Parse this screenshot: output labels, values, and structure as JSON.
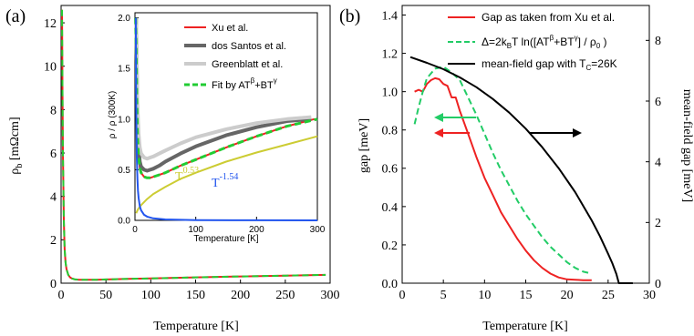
{
  "chart_data": [
    {
      "panel_label": "(a)",
      "type": "line",
      "xlabel": "Temperature [K]",
      "ylabel": "ρ_b [mΩcm]",
      "ylabel_main": "ρ",
      "ylabel_sub": "b",
      "ylabel_rest": " [mΩcm]",
      "xlim": [
        0,
        300
      ],
      "ylim": [
        0,
        12.8
      ],
      "xticks": [
        0,
        50,
        100,
        150,
        200,
        250,
        300
      ],
      "yticks": [
        0,
        2,
        4,
        6,
        8,
        10,
        12
      ],
      "series": [
        {
          "name": "Xu et al.",
          "color": "#ee2222",
          "x": [
            1,
            1.5,
            2,
            3,
            4,
            5,
            6,
            8,
            10,
            12,
            15,
            20,
            25,
            30,
            40,
            50,
            75,
            100,
            150,
            200,
            250,
            295
          ],
          "y": [
            12.6,
            9.0,
            6.0,
            2.9,
            1.55,
            0.95,
            0.65,
            0.38,
            0.27,
            0.22,
            0.18,
            0.16,
            0.155,
            0.155,
            0.16,
            0.17,
            0.2,
            0.22,
            0.27,
            0.31,
            0.35,
            0.38
          ]
        },
        {
          "name": "Fit by AT^β+BT^γ",
          "color": "#22cc33",
          "dashed": true,
          "x": [
            1,
            1.5,
            2,
            3,
            4,
            5,
            6,
            8,
            10,
            12,
            15,
            20,
            25,
            30,
            40,
            50,
            75,
            100,
            150,
            200,
            250,
            295
          ],
          "y": [
            12.6,
            9.0,
            6.0,
            2.9,
            1.55,
            0.95,
            0.65,
            0.38,
            0.27,
            0.22,
            0.18,
            0.16,
            0.155,
            0.155,
            0.16,
            0.17,
            0.2,
            0.22,
            0.27,
            0.31,
            0.35,
            0.38
          ]
        }
      ]
    },
    {
      "panel_label": "inset",
      "type": "line",
      "xlabel": "Temperature [K]",
      "ylabel": "ρ / ρ (300K)",
      "xlim": [
        0,
        300
      ],
      "ylim": [
        0,
        2.05
      ],
      "xticks": [
        0,
        100,
        200,
        300
      ],
      "yticks": [
        0.0,
        0.5,
        1.0,
        1.5,
        2.0
      ],
      "legend_position": "top-right",
      "annotations": [
        {
          "text": "T",
          "sup": "0.53",
          "color": "#cccc33"
        },
        {
          "text": "T",
          "sup": "-1.54",
          "color": "#2255ee"
        }
      ],
      "series": [
        {
          "name": "Xu et al.",
          "color": "#ee2222",
          "x": [
            1,
            2,
            3,
            4,
            6,
            8,
            10,
            15,
            20,
            25,
            30,
            40,
            50,
            75,
            100,
            150,
            200,
            250,
            295
          ],
          "y": [
            2.0,
            1.7,
            1.2,
            0.85,
            0.62,
            0.52,
            0.47,
            0.43,
            0.42,
            0.42,
            0.43,
            0.45,
            0.47,
            0.54,
            0.6,
            0.72,
            0.83,
            0.93,
            1.0
          ]
        },
        {
          "name": "dos Santos et al.",
          "color": "#666666",
          "x": [
            2,
            4,
            6,
            8,
            10,
            15,
            20,
            25,
            30,
            40,
            50,
            75,
            100,
            150,
            200,
            250,
            290
          ],
          "y": [
            2.0,
            1.05,
            0.72,
            0.58,
            0.53,
            0.5,
            0.49,
            0.5,
            0.51,
            0.54,
            0.58,
            0.66,
            0.73,
            0.84,
            0.92,
            0.98,
            1.0
          ]
        },
        {
          "name": "Greenblatt et al.",
          "color": "#cccccc",
          "x": [
            2,
            4,
            6,
            8,
            10,
            15,
            20,
            25,
            30,
            40,
            50,
            75,
            100,
            150,
            200,
            250,
            290
          ],
          "y": [
            2.0,
            1.15,
            0.85,
            0.72,
            0.66,
            0.62,
            0.61,
            0.62,
            0.63,
            0.66,
            0.69,
            0.76,
            0.82,
            0.9,
            0.96,
            1.0,
            1.02
          ]
        },
        {
          "name": "Fit by AT^β+BT^γ",
          "color": "#22cc33",
          "dashed": true,
          "x": [
            1,
            2,
            3,
            4,
            6,
            8,
            10,
            15,
            20,
            25,
            30,
            40,
            50,
            75,
            100,
            150,
            200,
            250,
            300
          ],
          "y": [
            2.0,
            1.7,
            1.2,
            0.85,
            0.62,
            0.52,
            0.47,
            0.43,
            0.42,
            0.42,
            0.43,
            0.45,
            0.47,
            0.54,
            0.6,
            0.72,
            0.83,
            0.93,
            1.0
          ]
        },
        {
          "name": "T^0.53",
          "color": "#cccc33",
          "x": [
            2,
            5,
            10,
            20,
            30,
            50,
            75,
            100,
            150,
            200,
            250,
            300
          ],
          "y": [
            0.07,
            0.11,
            0.15,
            0.21,
            0.26,
            0.33,
            0.41,
            0.47,
            0.58,
            0.67,
            0.75,
            0.83
          ]
        },
        {
          "name": "T^-1.54",
          "color": "#2255ee",
          "x": [
            1.4,
            2,
            3,
            4,
            5,
            6,
            8,
            10,
            15,
            20,
            30,
            50,
            100,
            200,
            300
          ],
          "y": [
            2.0,
            1.15,
            0.62,
            0.41,
            0.29,
            0.22,
            0.14,
            0.1,
            0.055,
            0.037,
            0.02,
            0.009,
            0.003,
            0.001,
            0.0
          ]
        }
      ]
    },
    {
      "panel_label": "(b)",
      "type": "line",
      "xlabel": "Temperature [K]",
      "ylabel": "gap [meV]",
      "y2label": "mean-field gap [meV]",
      "xlim": [
        0,
        30
      ],
      "ylim": [
        0,
        1.45
      ],
      "y2lim": [
        0,
        9.15
      ],
      "xticks": [
        0,
        5,
        10,
        15,
        20,
        25,
        30
      ],
      "yticks": [
        0.0,
        0.2,
        0.4,
        0.6,
        0.8,
        1.0,
        1.2,
        1.4
      ],
      "y2ticks": [
        0,
        2,
        4,
        6,
        8
      ],
      "legend_position": "top-right",
      "series": [
        {
          "name": "Gap as taken from Xu et al.",
          "color": "#ee2222",
          "axis": "left",
          "x": [
            1.5,
            2,
            2.5,
            3,
            3.5,
            4,
            4.5,
            5,
            5.5,
            6,
            6.5,
            7,
            8,
            9,
            10,
            11,
            12,
            13,
            14,
            15,
            16,
            17,
            18,
            19,
            20,
            21,
            22,
            23
          ],
          "y": [
            1.0,
            1.01,
            1.0,
            1.04,
            1.06,
            1.07,
            1.065,
            1.04,
            1.03,
            0.97,
            0.97,
            0.9,
            0.78,
            0.66,
            0.55,
            0.46,
            0.37,
            0.3,
            0.23,
            0.17,
            0.12,
            0.08,
            0.05,
            0.03,
            0.02,
            0.018,
            0.015,
            0.015
          ]
        },
        {
          "name": "Δ=2k_BT ln([AT^β+BT^γ] / ρ_0 )",
          "color": "#22cc66",
          "dashed": true,
          "axis": "left",
          "x": [
            1.5,
            2,
            2.5,
            3,
            4,
            5,
            6,
            7,
            8,
            9,
            10,
            11,
            12,
            13,
            14,
            15,
            16,
            17,
            18,
            19,
            20,
            21,
            22,
            23
          ],
          "y": [
            0.83,
            0.92,
            1.0,
            1.07,
            1.12,
            1.13,
            1.1,
            1.06,
            0.97,
            0.88,
            0.78,
            0.68,
            0.59,
            0.51,
            0.43,
            0.36,
            0.3,
            0.24,
            0.19,
            0.15,
            0.11,
            0.08,
            0.06,
            0.05
          ]
        },
        {
          "name": "mean-field gap with T_C=26K",
          "color": "#000000",
          "axis": "right",
          "x": [
            1,
            3,
            5,
            7,
            9,
            11,
            13,
            15,
            17,
            19,
            21,
            23,
            24,
            25,
            25.5,
            26,
            26.3,
            28
          ],
          "y": [
            7.45,
            7.26,
            7.05,
            6.78,
            6.46,
            6.07,
            5.62,
            5.09,
            4.48,
            3.79,
            3.0,
            2.07,
            1.55,
            0.97,
            0.66,
            0.3,
            0.0,
            0.0
          ]
        }
      ],
      "arrows": [
        {
          "direction": "left",
          "color": "#22cc66"
        },
        {
          "direction": "left",
          "color": "#ee2222"
        },
        {
          "direction": "right",
          "color": "#000000"
        }
      ]
    }
  ],
  "legend_a_inset": [
    {
      "label": "Xu et al.",
      "color": "#ee2222"
    },
    {
      "label": "dos Santos et al.",
      "color": "#666666"
    },
    {
      "label": "Greenblatt et al.",
      "color": "#cccccc"
    },
    {
      "label": "Fit by AT",
      "sup1": "β",
      "mid": "+BT",
      "sup2": "γ",
      "color": "#22cc33",
      "dashed": true
    }
  ],
  "legend_b": [
    {
      "label": "Gap as taken from Xu et al.",
      "color": "#ee2222"
    },
    {
      "label": "Δ=2k",
      "sub1": "B",
      "mid": "T ln([AT",
      "sup1": "β",
      "mid2": "+BT",
      "sup2": "γ",
      "end": "] / ρ",
      "sub2": "0",
      "tail": " )",
      "color": "#22cc66",
      "dashed": true
    },
    {
      "label": "mean-field gap with T",
      "sub1": "C",
      "end": "=26K",
      "color": "#000000"
    }
  ]
}
